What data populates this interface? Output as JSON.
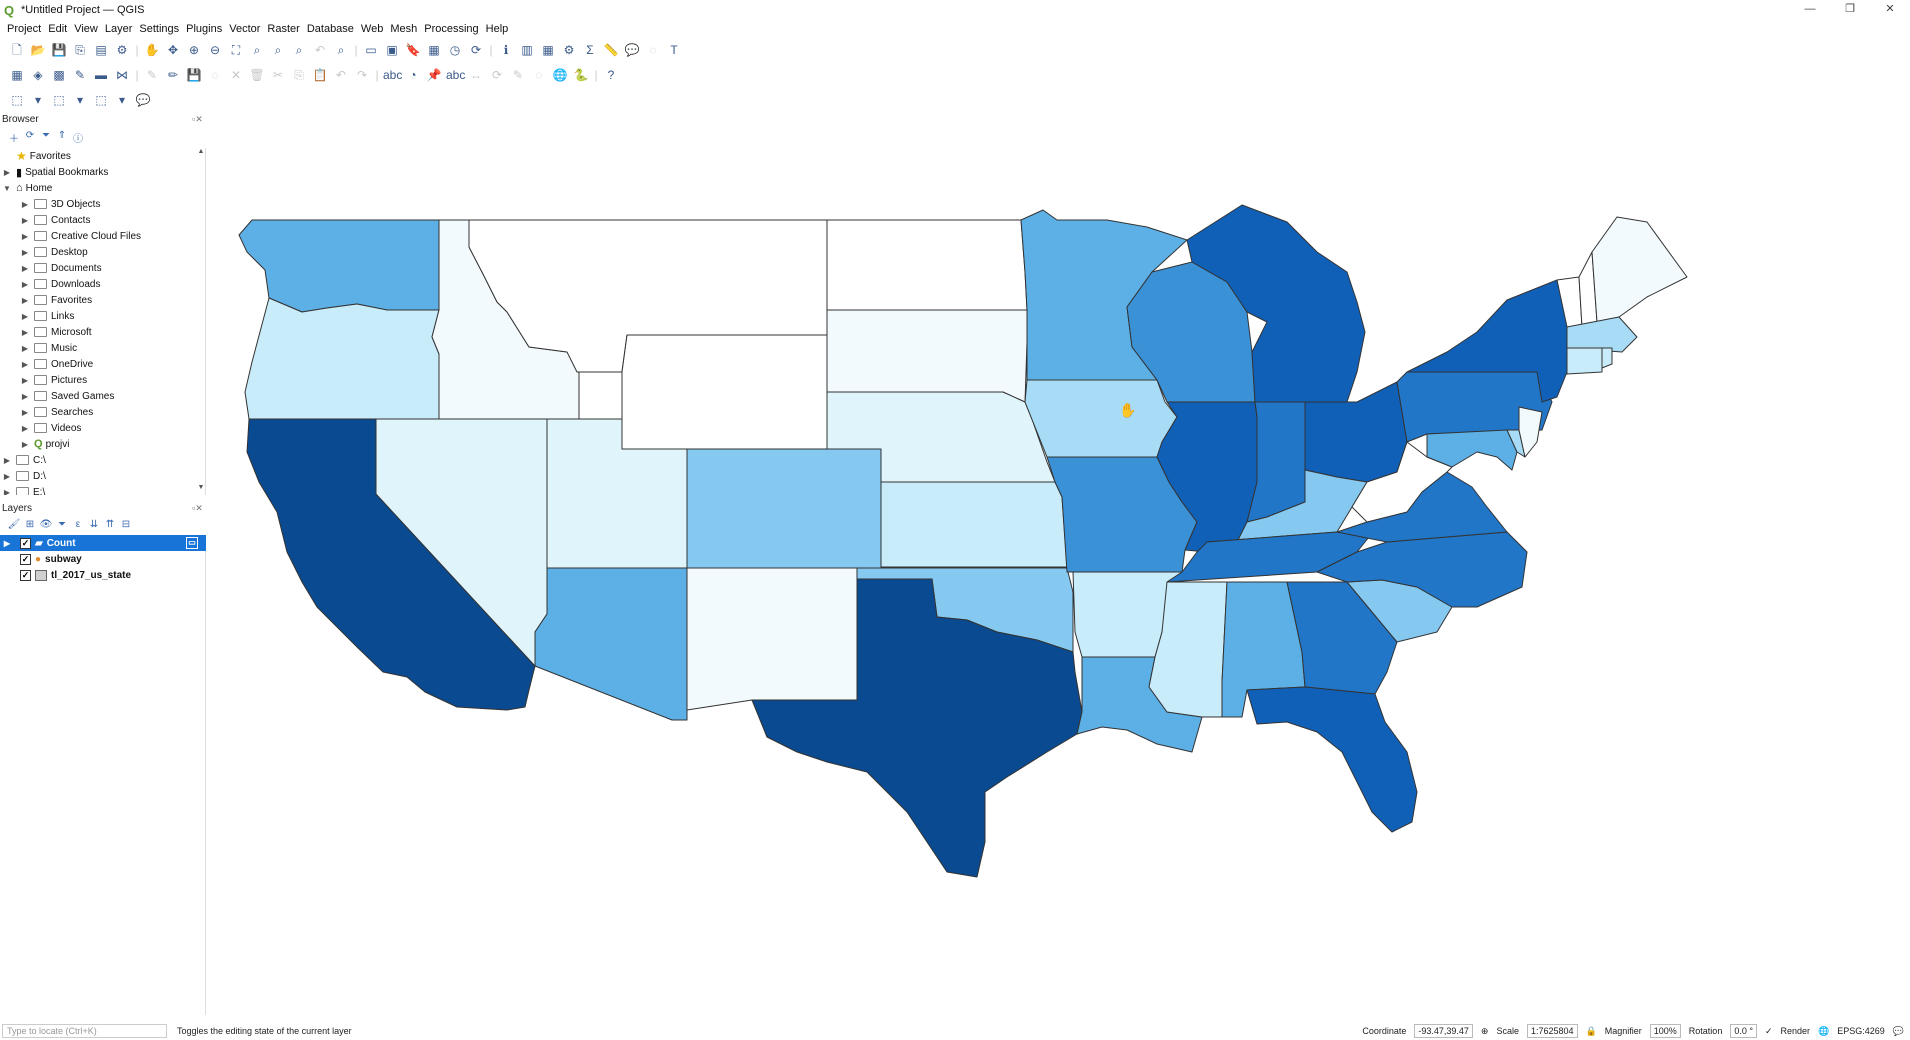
{
  "window": {
    "title": "*Untitled Project — QGIS",
    "controls": [
      "—",
      "❐",
      "✕"
    ]
  },
  "menu": [
    "Project",
    "Edit",
    "View",
    "Layer",
    "Settings",
    "Plugins",
    "Vector",
    "Raster",
    "Database",
    "Web",
    "Mesh",
    "Processing",
    "Help"
  ],
  "browser": {
    "title": "Browser",
    "items": [
      {
        "label": "Favorites",
        "icon": "star-icon"
      },
      {
        "label": "Spatial Bookmarks",
        "icon": "bookmark-icon"
      },
      {
        "label": "Home",
        "icon": "home-icon"
      },
      {
        "label": "3D Objects",
        "icon": "folder-icon"
      },
      {
        "label": "Contacts",
        "icon": "folder-icon"
      },
      {
        "label": "Creative Cloud Files",
        "icon": "folder-icon"
      },
      {
        "label": "Desktop",
        "icon": "folder-icon"
      },
      {
        "label": "Documents",
        "icon": "folder-icon"
      },
      {
        "label": "Downloads",
        "icon": "folder-icon"
      },
      {
        "label": "Favorites",
        "icon": "folder-icon"
      },
      {
        "label": "Links",
        "icon": "folder-icon"
      },
      {
        "label": "Microsoft",
        "icon": "folder-icon"
      },
      {
        "label": "Music",
        "icon": "folder-icon"
      },
      {
        "label": "OneDrive",
        "icon": "folder-icon"
      },
      {
        "label": "Pictures",
        "icon": "folder-icon"
      },
      {
        "label": "Saved Games",
        "icon": "folder-icon"
      },
      {
        "label": "Searches",
        "icon": "folder-icon"
      },
      {
        "label": "Videos",
        "icon": "folder-icon"
      },
      {
        "label": "projvi",
        "icon": "qgis-project-icon"
      },
      {
        "label": "C:\\",
        "icon": "drive-icon"
      },
      {
        "label": "D:\\",
        "icon": "drive-icon"
      },
      {
        "label": "E:\\",
        "icon": "drive-icon"
      }
    ]
  },
  "layers": {
    "title": "Layers",
    "items": [
      {
        "label": "Count",
        "checked": true,
        "selected": true
      },
      {
        "label": "subway",
        "checked": true,
        "selected": false
      },
      {
        "label": "tl_2017_us_state",
        "checked": true,
        "selected": false
      }
    ]
  },
  "status": {
    "locator_placeholder": "Type to locate (Ctrl+K)",
    "message": "Toggles the editing state of the current layer",
    "coordinate_label": "Coordinate",
    "coordinate_value": "-93.47,39.47",
    "scale_label": "Scale",
    "scale_value": "1:7625804",
    "magnifier_label": "Magnifier",
    "magnifier_value": "100%",
    "rotation_label": "Rotation",
    "rotation_value": "0.0 °",
    "render_label": "Render",
    "crs": "EPSG:4269"
  },
  "colors": {
    "c0": "#ffffff",
    "c1": "#f2fafd",
    "c2": "#dff4fb",
    "c3": "#c9ecfa",
    "c4": "#a8dcf6",
    "c5": "#85c8f0",
    "c6": "#5db0e6",
    "c7": "#3a91d6",
    "c8": "#2176c8",
    "c9": "#1060b8",
    "c10": "#0a4a90"
  }
}
